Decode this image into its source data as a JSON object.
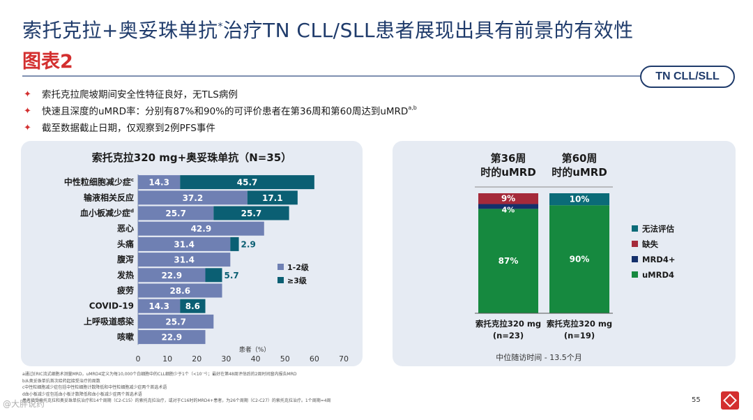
{
  "header": {
    "title_main": "索托克拉+奥妥珠单抗",
    "title_sup": "*",
    "title_rest": "治疗TN CLL/SLL患者展现出具有前景的有效性",
    "subtitle": "图表2",
    "badge": "TN CLL/SLL"
  },
  "bullets": [
    {
      "text": "索托克拉爬坡期间安全性特征良好，无TLS病例",
      "sup": ""
    },
    {
      "text": "快速且深度的uMRD率：分别有87%和90%的可评价患者在第36周和第60周达到uMRD",
      "sup": "a,b"
    },
    {
      "text": "截至数据截止日期，仅观察到2例PFS事件",
      "sup": ""
    }
  ],
  "colors": {
    "grade12": "#6f80b3",
    "grade3": "#0b5f73",
    "missing": "#a52a3a",
    "mrd_pos": "#14306b",
    "umrd4": "#16893f",
    "unevaluable": "#0b6b78",
    "accent_red": "#d32f2f"
  },
  "left_chart": {
    "title": "索托克拉320 mg+奥妥珠单抗（N=35）",
    "xlabel": "患者（%）"
  },
  "right_chart": {
    "col1_header": "第36周时的uMRD",
    "col2_header": "第60周时的uMRD",
    "followup": "中位随访时间 - 13.5个月"
  },
  "chart_data": [
    {
      "type": "bar",
      "orientation": "horizontal",
      "stacked": true,
      "title": "索托克拉320 mg+奥妥珠单抗（N=35）",
      "xlabel": "患者（%）",
      "xlim": [
        0,
        70
      ],
      "xticks": [
        0,
        10,
        20,
        30,
        40,
        50,
        60,
        70
      ],
      "categories": [
        {
          "label": "中性粒细胞减少症",
          "sup": "c"
        },
        {
          "label": "输液相关反应",
          "sup": ""
        },
        {
          "label": "血小板减少症",
          "sup": "d"
        },
        {
          "label": "恶心",
          "sup": ""
        },
        {
          "label": "头痛",
          "sup": ""
        },
        {
          "label": "腹泻",
          "sup": ""
        },
        {
          "label": "发热",
          "sup": ""
        },
        {
          "label": "疲劳",
          "sup": ""
        },
        {
          "label": "COVID-19",
          "sup": ""
        },
        {
          "label": "上呼吸道感染",
          "sup": ""
        },
        {
          "label": "咳嗽",
          "sup": ""
        }
      ],
      "series": [
        {
          "name": "1-2级",
          "values": [
            14.3,
            37.2,
            25.7,
            42.9,
            31.4,
            31.4,
            22.9,
            28.6,
            14.3,
            25.7,
            22.9
          ]
        },
        {
          "name": "≥3级",
          "values": [
            45.7,
            17.1,
            25.7,
            null,
            2.9,
            null,
            5.7,
            null,
            8.6,
            null,
            null
          ]
        }
      ],
      "legend_position": "right"
    },
    {
      "type": "bar",
      "stacked": true,
      "ylim": [
        0,
        100
      ],
      "categories": [
        "索托克拉320 mg\n(n=23)",
        "索托克拉320 mg\n(n=19)"
      ],
      "category_lines": [
        [
          "索托克拉320 mg",
          "(n=23)"
        ],
        [
          "索托克拉320 mg",
          "(n=19)"
        ]
      ],
      "series": [
        {
          "name": "uMRD4",
          "values": [
            87,
            90
          ],
          "labels": [
            "87%",
            "90%"
          ]
        },
        {
          "name": "MRD4+",
          "values": [
            4,
            0
          ],
          "labels": [
            "4%",
            ""
          ]
        },
        {
          "name": "缺失",
          "values": [
            9,
            0
          ],
          "labels": [
            "9%",
            ""
          ]
        },
        {
          "name": "无法评估",
          "values": [
            0,
            10
          ],
          "labels": [
            "",
            "10%"
          ]
        }
      ],
      "legend": [
        "无法评估",
        "缺失",
        "MRD4+",
        "uMRD4"
      ],
      "legend_position": "right"
    }
  ],
  "footnotes": [
    "a通过ERIC流式细胞术测量MRD，uMRD4定义为每10,000个白细胞中的CLL细胞少于1个（<10⁻⁴）；最好在第48周评估后的2周时间窗内报告MRD",
    "b从奥妥珠单抗首次给药起接受治疗的周数",
    "c中性粒细胞减少症包括中性粒细胞计数降低和中性粒细胞减少症两个首选术语",
    "d血小板减少症包括血小板计数降低和血小板减少症两个首选术语",
    "患者接受索托克拉和奥妥珠单抗治疗和14个周期（C2-C15）的索托克拉治疗，或对于C16时的MRD4+患者，为26个周期（C2-C27）的索托克拉治疗。1个周期=4周"
  ],
  "page_number": "55",
  "watermark": "@大胖说药"
}
